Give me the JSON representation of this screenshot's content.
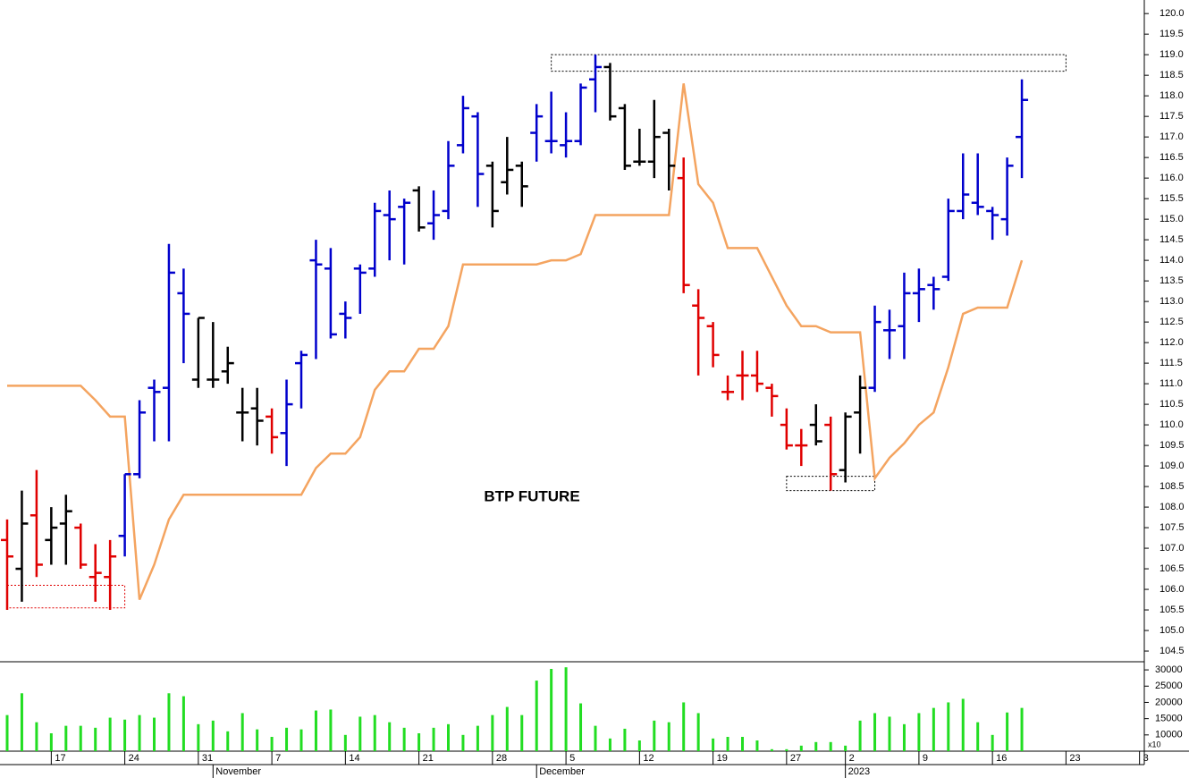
{
  "chart_data": [
    {
      "type": "ohlc",
      "title": "BTP FUTURE",
      "open": [
        107.2,
        106.5,
        107.8,
        107.2,
        107.6,
        107.5,
        106.3,
        106.3,
        107.3,
        108.8,
        110.9,
        110.9,
        113.2,
        111.1,
        111.1,
        111.3,
        110.3,
        110.4,
        110.2,
        109.8,
        111.5,
        114.0,
        113.8,
        112.7,
        113.8,
        113.8,
        115.1,
        115.3,
        115.7,
        114.9,
        115.2,
        116.8,
        117.5,
        116.3,
        115.9,
        116.3,
        117.1,
        116.9,
        116.8,
        116.9,
        118.4,
        118.7,
        117.7,
        116.4,
        116.4,
        117.1,
        116.0,
        112.9,
        112.4,
        110.8,
        111.2,
        111.2,
        110.9,
        110.0,
        109.5,
        110.0,
        110.0,
        108.9,
        110.3,
        110.9,
        112.3,
        112.4,
        113.2,
        113.4,
        113.6,
        115.2,
        115.4,
        115.2,
        115.0,
        117.0
      ],
      "high": [
        107.7,
        108.4,
        108.9,
        108.0,
        108.3,
        107.6,
        107.1,
        107.2,
        108.8,
        110.6,
        111.1,
        114.4,
        113.8,
        112.6,
        112.5,
        111.9,
        110.9,
        110.9,
        110.4,
        111.1,
        111.8,
        114.5,
        114.3,
        113.0,
        113.9,
        115.4,
        115.7,
        115.5,
        115.8,
        115.7,
        116.9,
        118.0,
        117.6,
        116.4,
        117.0,
        116.4,
        117.8,
        118.1,
        117.6,
        118.3,
        119.0,
        118.8,
        117.8,
        117.2,
        117.9,
        117.2,
        116.5,
        113.3,
        112.5,
        111.2,
        111.8,
        111.8,
        111.0,
        110.4,
        109.9,
        110.5,
        110.2,
        110.3,
        111.2,
        112.9,
        112.8,
        113.7,
        113.8,
        113.6,
        115.5,
        116.6,
        116.6,
        115.3,
        116.5,
        118.4
      ],
      "low": [
        105.5,
        105.7,
        106.3,
        106.6,
        106.6,
        106.5,
        105.7,
        105.5,
        106.8,
        108.7,
        109.6,
        109.6,
        111.5,
        110.9,
        110.9,
        111.0,
        109.6,
        109.5,
        109.3,
        109.0,
        110.4,
        111.6,
        112.1,
        112.1,
        112.7,
        113.6,
        114.0,
        113.9,
        114.7,
        114.5,
        115.0,
        116.6,
        115.3,
        114.8,
        115.6,
        115.3,
        116.4,
        116.6,
        116.5,
        116.8,
        117.6,
        117.4,
        116.2,
        116.3,
        116.0,
        115.7,
        113.2,
        111.2,
        111.4,
        110.6,
        110.6,
        110.8,
        110.2,
        109.4,
        109.0,
        109.5,
        108.4,
        108.6,
        109.3,
        110.8,
        111.6,
        111.6,
        112.5,
        112.8,
        113.5,
        115.0,
        115.1,
        114.5,
        114.6,
        116.0
      ],
      "close": [
        106.8,
        107.6,
        106.6,
        107.5,
        107.9,
        106.6,
        106.4,
        106.8,
        108.8,
        110.3,
        110.8,
        113.7,
        112.7,
        112.6,
        111.1,
        111.5,
        110.3,
        110.1,
        109.7,
        110.5,
        111.7,
        113.9,
        112.2,
        112.6,
        113.7,
        115.2,
        115.0,
        115.4,
        114.8,
        115.1,
        116.3,
        117.7,
        116.1,
        115.2,
        116.2,
        115.8,
        117.5,
        116.9,
        116.9,
        118.2,
        118.7,
        117.5,
        116.3,
        116.4,
        117.0,
        116.3,
        113.4,
        112.6,
        111.7,
        110.8,
        111.2,
        111.0,
        110.7,
        109.5,
        109.5,
        109.6,
        108.8,
        110.2,
        110.9,
        112.5,
        112.3,
        113.2,
        113.3,
        113.3,
        115.2,
        115.6,
        115.3,
        115.1,
        116.3,
        117.9
      ],
      "bar_colors": [
        "#e00000",
        "#000000",
        "#e00000",
        "#000000",
        "#000000",
        "#e00000",
        "#e00000",
        "#e00000",
        "#0000cc",
        "#0000cc",
        "#0000cc",
        "#0000cc",
        "#0000cc",
        "#000000",
        "#000000",
        "#000000",
        "#000000",
        "#000000",
        "#e00000",
        "#0000cc",
        "#0000cc",
        "#0000cc",
        "#0000cc",
        "#0000cc",
        "#0000cc",
        "#0000cc",
        "#0000cc",
        "#0000cc",
        "#000000",
        "#0000cc",
        "#0000cc",
        "#0000cc",
        "#0000cc",
        "#000000",
        "#000000",
        "#000000",
        "#0000cc",
        "#0000cc",
        "#0000cc",
        "#0000cc",
        "#0000cc",
        "#000000",
        "#000000",
        "#000000",
        "#000000",
        "#000000",
        "#e00000",
        "#e00000",
        "#e00000",
        "#e00000",
        "#e00000",
        "#e00000",
        "#e00000",
        "#e00000",
        "#e00000",
        "#000000",
        "#e00000",
        "#000000",
        "#000000",
        "#0000cc",
        "#0000cc",
        "#0000cc",
        "#0000cc",
        "#0000cc",
        "#0000cc",
        "#0000cc",
        "#0000cc",
        "#0000cc",
        "#0000cc",
        "#0000cc"
      ],
      "line": {
        "color": "#f4a460",
        "values": [
          110.95,
          110.95,
          110.95,
          110.95,
          110.95,
          110.95,
          110.6,
          110.2,
          110.2,
          105.75,
          106.6,
          107.7,
          108.3,
          108.3,
          108.3,
          108.3,
          108.3,
          108.3,
          108.3,
          108.3,
          108.3,
          108.95,
          109.3,
          109.3,
          109.7,
          110.85,
          111.3,
          111.3,
          111.85,
          111.85,
          112.4,
          113.9,
          113.9,
          113.9,
          113.9,
          113.9,
          113.9,
          114.0,
          114.0,
          114.15,
          115.1,
          115.1,
          115.1,
          115.1,
          115.1,
          115.1,
          118.3,
          115.85,
          115.4,
          114.3,
          114.3,
          114.3,
          113.6,
          112.9,
          112.4,
          112.4,
          112.25,
          112.25,
          112.25,
          108.7,
          109.2,
          109.55,
          110.0,
          110.3,
          111.4,
          112.7,
          112.85,
          112.85,
          112.85,
          114.0
        ]
      },
      "zones": [
        {
          "ylim": [
            118.6,
            119.0
          ],
          "xrange": [
            37,
            72
          ],
          "color": "#000000"
        },
        {
          "ylim": [
            108.4,
            108.75
          ],
          "xrange": [
            53,
            59
          ],
          "color": "#000000"
        },
        {
          "ylim": [
            105.55,
            106.1
          ],
          "xrange": [
            0,
            8
          ],
          "color": "#e00000"
        }
      ],
      "ylim": [
        104.24,
        120.33
      ],
      "yticks": [
        104.5,
        {
          "value": 105,
          "label": "105.0"
        },
        105.5,
        {
          "value": 106,
          "label": "106.0"
        },
        106.5,
        {
          "value": 107,
          "label": "107.0"
        },
        107.5,
        {
          "value": 108,
          "label": "108.0"
        },
        108.5,
        {
          "value": 109,
          "label": "109.0"
        },
        109.5,
        {
          "value": 110,
          "label": "110.0"
        },
        110.5,
        {
          "value": 111,
          "label": "111.0"
        },
        111.5,
        {
          "value": 112,
          "label": "112.0"
        },
        112.5,
        {
          "value": 113,
          "label": "113.0"
        },
        113.5,
        {
          "value": 114,
          "label": "114.0"
        },
        114.5,
        {
          "value": 115,
          "label": "115.0"
        },
        115.5,
        {
          "value": 116,
          "label": "116.0"
        },
        116.5,
        {
          "value": 117,
          "label": "117.0"
        },
        117.5,
        {
          "value": 118,
          "label": "118.0"
        },
        118.5,
        {
          "value": 119,
          "label": "119.0"
        },
        119.5,
        {
          "value": 120,
          "label": "120.0"
        }
      ]
    },
    {
      "type": "bar",
      "color": "#22dd22",
      "axis_note": "x10",
      "categories": [
        null,
        null,
        null,
        "17",
        null,
        null,
        null,
        null,
        "24",
        null,
        null,
        null,
        null,
        "31",
        null,
        null,
        null,
        null,
        "7",
        null,
        null,
        null,
        null,
        "14",
        null,
        null,
        null,
        null,
        "21",
        null,
        null,
        null,
        null,
        "28",
        null,
        null,
        null,
        null,
        "5",
        null,
        null,
        null,
        null,
        "12",
        null,
        null,
        null,
        null,
        "19",
        null,
        null,
        null,
        null,
        "27",
        null,
        null,
        null,
        "2",
        null,
        null,
        null,
        null,
        "9",
        null,
        null,
        null,
        null,
        "16",
        null,
        null,
        null,
        null,
        "23",
        null,
        null,
        null,
        null,
        "3"
      ],
      "months": [
        null,
        null,
        null,
        null,
        null,
        null,
        null,
        null,
        null,
        null,
        null,
        null,
        null,
        null,
        "November",
        null,
        null,
        null,
        null,
        null,
        null,
        null,
        null,
        null,
        null,
        null,
        null,
        null,
        null,
        null,
        null,
        null,
        null,
        null,
        null,
        null,
        "December",
        null,
        null,
        null,
        null,
        null,
        null,
        null,
        null,
        null,
        null,
        null,
        null,
        null,
        null,
        null,
        null,
        null,
        null,
        null,
        null,
        "2023",
        null,
        null,
        null,
        null,
        null,
        null,
        null,
        null,
        null,
        null,
        null,
        null,
        null,
        null,
        null,
        null,
        null,
        null,
        null,
        null
      ],
      "values": [
        16100,
        22800,
        13900,
        10500,
        12800,
        12800,
        12200,
        15300,
        14700,
        16100,
        15300,
        22800,
        21900,
        13300,
        14400,
        11100,
        16700,
        11700,
        9400,
        12200,
        11700,
        17500,
        17800,
        10000,
        15600,
        16100,
        13900,
        12200,
        10500,
        12200,
        13300,
        10000,
        12800,
        16100,
        18600,
        16100,
        26700,
        30300,
        30800,
        19700,
        12800,
        8900,
        11900,
        8300,
        14400,
        13900,
        20000,
        16700,
        8900,
        9400,
        9400,
        8300,
        5600,
        5600,
        6700,
        7800,
        7800,
        6700,
        14400,
        16700,
        15600,
        13300,
        16700,
        18300,
        20000,
        21100,
        13900,
        10000,
        16900,
        18300,
        null,
        null,
        null,
        null,
        null,
        null,
        null,
        null
      ],
      "ylim": [
        5000,
        32500
      ],
      "yticks": [
        10000,
        15000,
        20000,
        25000,
        30000
      ]
    }
  ]
}
